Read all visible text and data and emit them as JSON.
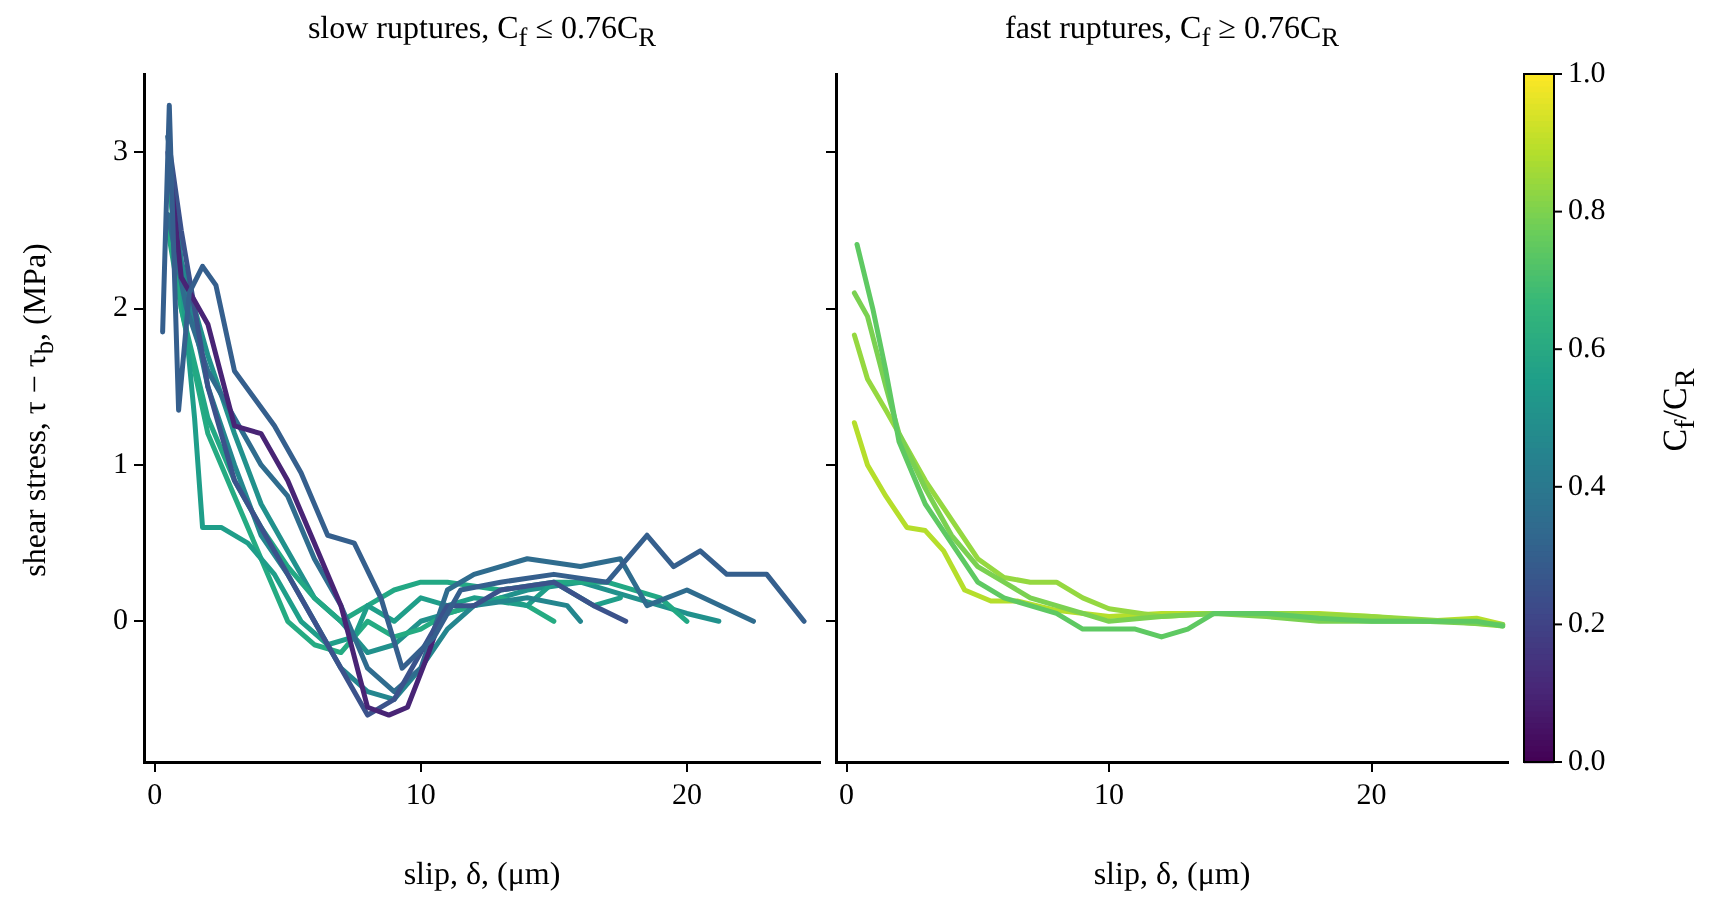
{
  "chart_data": [
    {
      "type": "line",
      "title": "slow ruptures, C$_{f}$ ≤ 0.76C$_{R}$",
      "xlabel": "slip, δ, (μm)",
      "ylabel": "shear stress, τ − τ$_{b}$, (MPa)",
      "xlim": [
        -0.4,
        25
      ],
      "xticks": [
        0,
        10,
        20
      ],
      "ylim": [
        -0.9,
        3.5
      ],
      "yticks": [
        0,
        1,
        2,
        3
      ],
      "series": [
        {
          "color": "#355f8d",
          "x": [
            0.3,
            0.55,
            0.9,
            1.3,
            1.8,
            2.3,
            3,
            4.5,
            5.5,
            6.5,
            7.5,
            8.5,
            9.3,
            10.5,
            11.5,
            13,
            15,
            17,
            18.5,
            19.5,
            20.5,
            21.5,
            23,
            24.4
          ],
          "values": [
            1.85,
            3.3,
            1.35,
            2.1,
            2.27,
            2.15,
            1.6,
            1.25,
            0.95,
            0.55,
            0.5,
            0.15,
            -0.3,
            -0.1,
            0.2,
            0.25,
            0.3,
            0.25,
            0.55,
            0.35,
            0.45,
            0.3,
            0.3,
            0
          ]
        },
        {
          "color": "#482475",
          "x": [
            0.5,
            1,
            2,
            3,
            4,
            5,
            6,
            7,
            8,
            8.8,
            9.5,
            10.3,
            10.5
          ],
          "values": [
            3.0,
            2.2,
            1.9,
            1.25,
            1.2,
            0.9,
            0.5,
            0.1,
            -0.55,
            -0.6,
            -0.55,
            -0.2,
            -0.1
          ]
        },
        {
          "color": "#3b528b",
          "x": [
            0.5,
            1,
            2,
            3,
            4,
            5,
            6,
            7,
            8,
            9,
            10,
            11,
            12,
            13,
            15,
            16.5,
            17.7
          ],
          "values": [
            3.1,
            2.5,
            1.5,
            0.9,
            0.6,
            0.3,
            0.0,
            -0.3,
            -0.6,
            -0.5,
            -0.2,
            0.1,
            0.1,
            0.2,
            0.25,
            0.1,
            0
          ]
        },
        {
          "color": "#2f6c8e",
          "x": [
            0.5,
            1.2,
            2,
            3,
            4,
            5,
            6,
            7,
            8,
            9,
            10,
            11,
            12,
            14,
            16,
            17.5,
            18.5,
            20,
            22.5
          ],
          "values": [
            2.6,
            2.0,
            1.6,
            1.3,
            1.0,
            0.8,
            0.4,
            0.1,
            -0.3,
            -0.45,
            -0.3,
            0.2,
            0.3,
            0.4,
            0.35,
            0.4,
            0.1,
            0.2,
            0
          ]
        },
        {
          "color": "#24868e",
          "x": [
            0.5,
            1,
            2,
            3,
            4,
            5,
            6,
            7,
            8,
            9,
            10,
            11,
            12,
            14,
            15.5,
            16
          ],
          "values": [
            3.1,
            2.3,
            1.5,
            1.0,
            0.55,
            0.3,
            0.0,
            -0.3,
            -0.45,
            -0.5,
            -0.3,
            -0.05,
            0.1,
            0.15,
            0.1,
            0.0
          ]
        },
        {
          "color": "#1f9e89",
          "x": [
            0.5,
            1,
            1.5,
            1.8,
            2.5,
            3.5,
            4.5,
            5.5,
            6.5,
            7.5,
            8,
            9,
            10,
            11,
            12,
            14,
            15,
            16.5,
            17.5
          ],
          "values": [
            2.6,
            2.2,
            1.3,
            0.6,
            0.6,
            0.5,
            0.3,
            0.0,
            -0.15,
            -0.1,
            0.1,
            0.0,
            0.15,
            0.1,
            0.15,
            0.1,
            0.25,
            0.1,
            0.15
          ]
        },
        {
          "color": "#22a884",
          "x": [
            0.5,
            1,
            2,
            3,
            4,
            5,
            6,
            7,
            8,
            9,
            10,
            11,
            13,
            15,
            17,
            19,
            20
          ],
          "values": [
            2.9,
            2.0,
            1.3,
            0.9,
            0.6,
            0.35,
            0.15,
            0.0,
            0.1,
            0.2,
            0.25,
            0.25,
            0.2,
            0.25,
            0.25,
            0.15,
            0.0
          ]
        },
        {
          "color": "#25ab82",
          "x": [
            0.5,
            1,
            2,
            3,
            4,
            5,
            6,
            7,
            8,
            9,
            10,
            11,
            12,
            13,
            14,
            15
          ],
          "values": [
            2.5,
            2.0,
            1.2,
            0.8,
            0.4,
            0.0,
            -0.15,
            -0.2,
            0.0,
            -0.1,
            -0.05,
            0.05,
            0.1,
            0.15,
            0.1,
            0.0
          ]
        },
        {
          "color": "#21918c",
          "x": [
            0.5,
            1,
            2,
            3,
            4,
            5,
            6,
            7,
            8,
            9,
            10,
            12,
            14,
            16,
            18,
            20,
            21.2
          ],
          "values": [
            2.8,
            2.3,
            1.7,
            1.2,
            0.75,
            0.45,
            0.15,
            0.0,
            -0.2,
            -0.15,
            0.0,
            0.1,
            0.2,
            0.25,
            0.15,
            0.05,
            0
          ]
        }
      ]
    },
    {
      "type": "line",
      "title": "fast ruptures, C$_{f}$ ≥ 0.76C$_{R}$",
      "xlabel": "slip, δ, (μm)",
      "xlim": [
        -0.4,
        25.2
      ],
      "xticks": [
        0,
        10,
        20
      ],
      "ylim": [
        -0.9,
        3.5
      ],
      "yticks": [
        0,
        1,
        2,
        3
      ],
      "tick_labels": "x",
      "clabel": "C$_{f}$/C$_{R}$",
      "clim": [
        0,
        1
      ],
      "cticks": [
        {
          "value": 0,
          "label": "0.0"
        },
        {
          "value": 0.2,
          "label": "0.2"
        },
        {
          "value": 0.4,
          "label": "0.4"
        },
        {
          "value": 0.6,
          "label": "0.6"
        },
        {
          "value": 0.8,
          "label": "0.8"
        },
        {
          "value": 1,
          "label": "1.0"
        }
      ],
      "series": [
        {
          "color": "#5ec962",
          "x": [
            0.4,
            1,
            1.5,
            2,
            3,
            4,
            5,
            6,
            7,
            8,
            9,
            10,
            11,
            12,
            13,
            14,
            16,
            18,
            20,
            22,
            24,
            25
          ],
          "values": [
            2.41,
            2.0,
            1.6,
            1.15,
            0.75,
            0.5,
            0.25,
            0.15,
            0.1,
            0.05,
            -0.05,
            -0.05,
            -0.05,
            -0.1,
            -0.05,
            0.05,
            0.05,
            0.02,
            0,
            0,
            0,
            -0.03
          ]
        },
        {
          "color": "#7ad151",
          "x": [
            0.3,
            0.8,
            1.5,
            2,
            3,
            4,
            5,
            6,
            7,
            8,
            9,
            10,
            12,
            14,
            16,
            18,
            20,
            22,
            25
          ],
          "values": [
            2.1,
            1.95,
            1.5,
            1.2,
            0.85,
            0.55,
            0.35,
            0.25,
            0.15,
            0.1,
            0.05,
            0.0,
            0.03,
            0.05,
            0.03,
            0.0,
            0.0,
            0.0,
            -0.02
          ]
        },
        {
          "color": "#95d840",
          "x": [
            0.3,
            0.8,
            1.5,
            2,
            3,
            4,
            5,
            6,
            7,
            8,
            9,
            10,
            12,
            14,
            17,
            20,
            23,
            25
          ],
          "values": [
            1.83,
            1.55,
            1.35,
            1.2,
            0.9,
            0.65,
            0.4,
            0.28,
            0.25,
            0.25,
            0.15,
            0.08,
            0.03,
            0.05,
            0.05,
            0.03,
            0.0,
            -0.03
          ]
        },
        {
          "color": "#b5de2b",
          "x": [
            0.3,
            0.8,
            1.5,
            2.3,
            3,
            3.7,
            4.5,
            5.5,
            6.5,
            8,
            10,
            12,
            14,
            16,
            18,
            20,
            22,
            24,
            25
          ],
          "values": [
            1.27,
            1.0,
            0.8,
            0.6,
            0.58,
            0.45,
            0.2,
            0.13,
            0.13,
            0.07,
            0.03,
            0.05,
            0.05,
            0.05,
            0.05,
            0.03,
            0.0,
            0.02,
            -0.02
          ]
        }
      ]
    }
  ]
}
